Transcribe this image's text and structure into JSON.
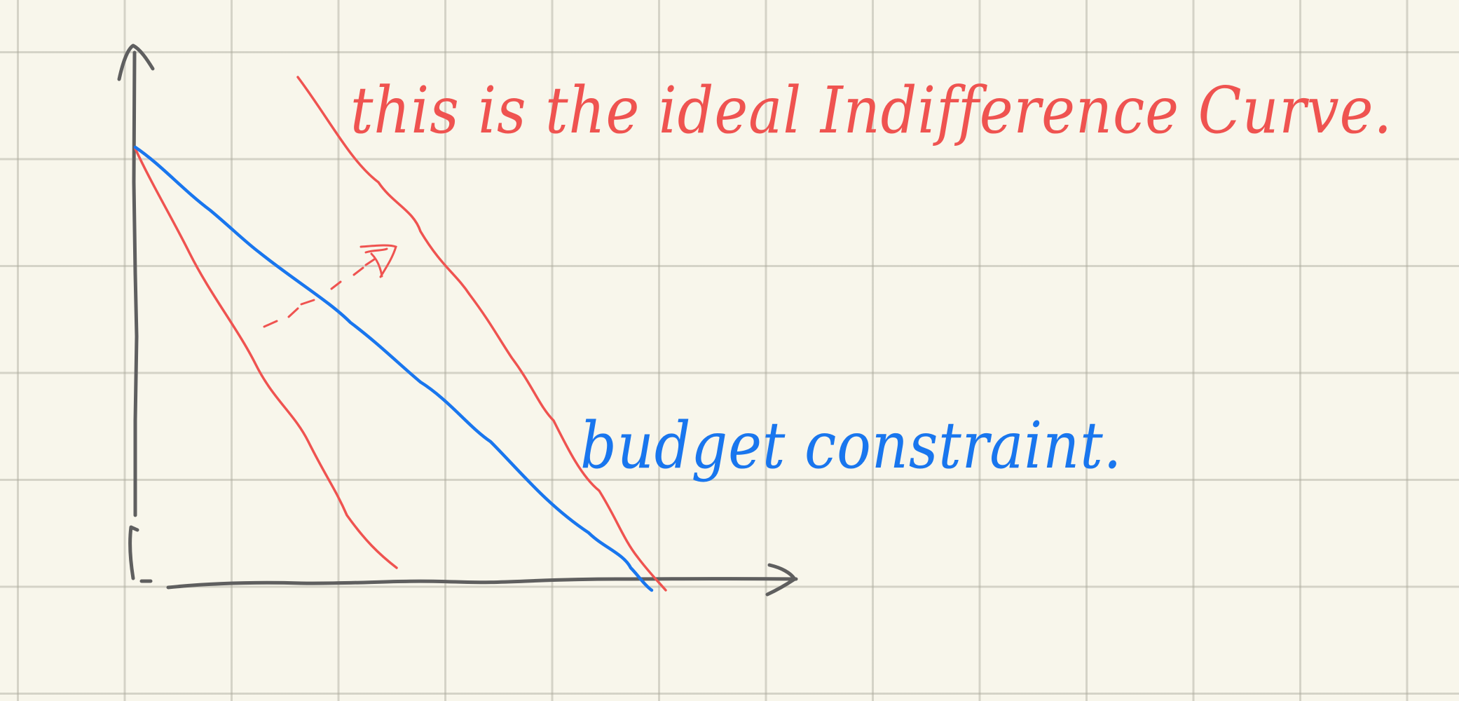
{
  "annotations": {
    "indifference_label": "this is the ideal Indifference Curve.",
    "budget_label": "budget constraint."
  },
  "colors": {
    "background": "#f8f6eb",
    "grid": "#bdbaac",
    "axis": "#5f5f5f",
    "indifference": "#ef5350",
    "budget": "#1976ee"
  }
}
